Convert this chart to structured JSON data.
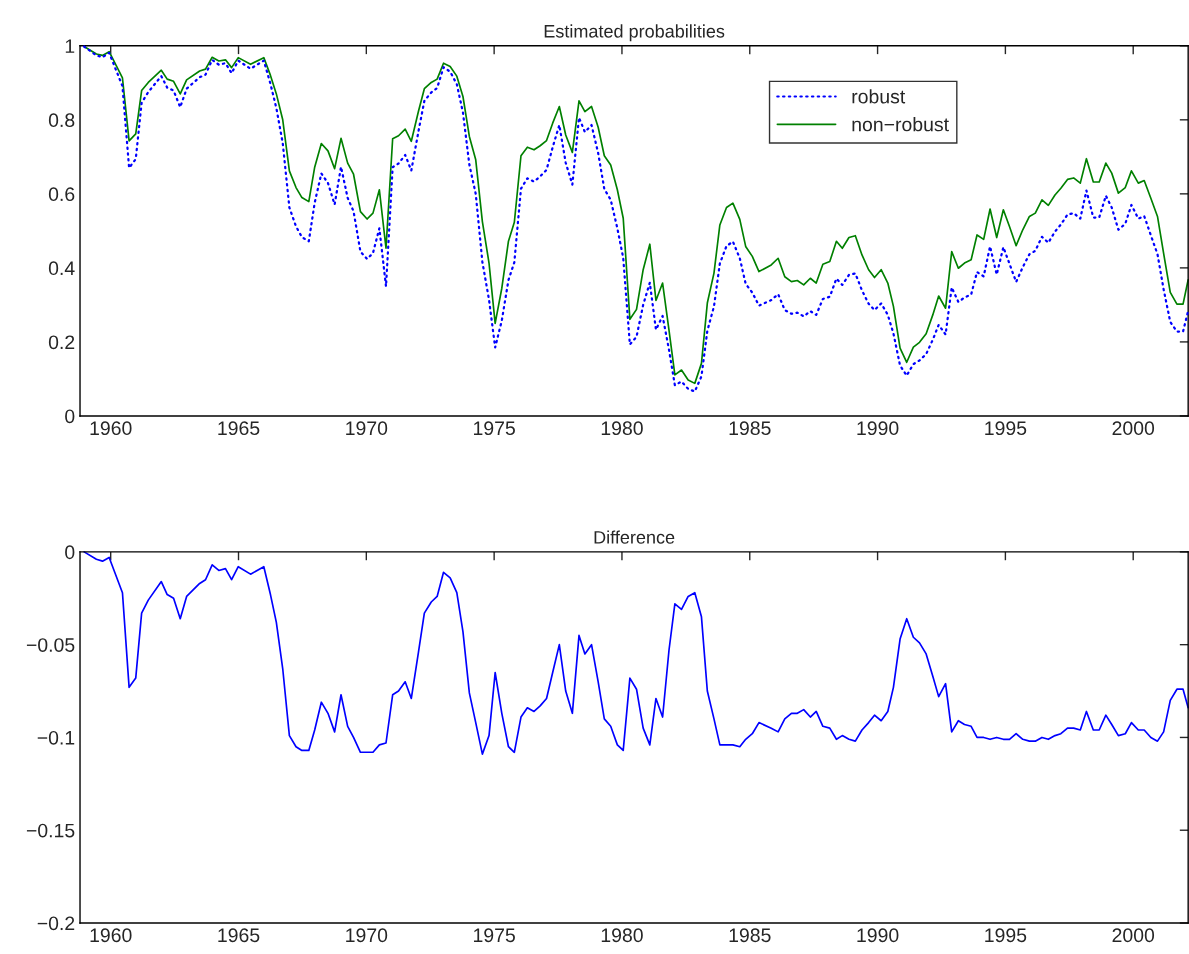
{
  "chart_data": [
    {
      "type": "line",
      "title": "Estimated probabilities",
      "x": [
        1958.96,
        1959.44,
        1959.68,
        1959.94,
        1960.46,
        1960.72,
        1960.98,
        1961.21,
        1961.47,
        1961.98,
        1962.21,
        1962.46,
        1962.72,
        1962.97,
        1963.48,
        1963.71,
        1963.97,
        1964.23,
        1964.49,
        1964.73,
        1964.99,
        1965.47,
        1965.99,
        1966.25,
        1966.48,
        1966.73,
        1966.99,
        1967.25,
        1967.48,
        1967.75,
        1967.98,
        1968.24,
        1968.5,
        1968.76,
        1969.01,
        1969.27,
        1969.5,
        1969.77,
        1970.03,
        1970.26,
        1970.51,
        1970.77,
        1971.03,
        1971.26,
        1971.52,
        1971.76,
        1972.04,
        1972.27,
        1972.54,
        1972.77,
        1973.02,
        1973.28,
        1973.54,
        1973.78,
        1974.03,
        1974.28,
        1974.54,
        1974.8,
        1975.04,
        1975.3,
        1975.56,
        1975.79,
        1976.05,
        1976.3,
        1976.56,
        1976.8,
        1977.05,
        1977.29,
        1977.55,
        1977.8,
        1978.06,
        1978.32,
        1978.55,
        1978.81,
        1979.07,
        1979.31,
        1979.56,
        1979.82,
        1980.05,
        1980.31,
        1980.57,
        1980.83,
        1981.09,
        1981.33,
        1981.59,
        1981.84,
        1982.07,
        1982.33,
        1982.59,
        1982.85,
        1983.11,
        1983.34,
        1983.6,
        1983.83,
        1984.09,
        1984.34,
        1984.61,
        1984.84,
        1985.1,
        1985.36,
        1985.84,
        1986.11,
        1986.37,
        1986.63,
        1986.86,
        1987.11,
        1987.37,
        1987.6,
        1987.86,
        1988.13,
        1988.39,
        1988.62,
        1988.88,
        1989.13,
        1989.39,
        1989.65,
        1989.88,
        1990.14,
        1990.4,
        1990.62,
        1990.88,
        1991.14,
        1991.4,
        1991.64,
        1991.9,
        1992.16,
        1992.39,
        1992.66,
        1992.9,
        1993.16,
        1993.4,
        1993.66,
        1993.89,
        1994.15,
        1994.4,
        1994.66,
        1994.92,
        1995.16,
        1995.42,
        1995.68,
        1995.94,
        1996.17,
        1996.43,
        1996.68,
        1996.94,
        1997.17,
        1997.43,
        1997.67,
        1997.93,
        1998.17,
        1998.44,
        1998.67,
        1998.93,
        1999.16,
        1999.42,
        1999.69,
        1999.93,
        2000.2,
        2000.43,
        2000.69,
        2000.95,
        2001.19,
        2001.45,
        2001.71,
        2001.95,
        2002.15
      ],
      "series": [
        {
          "name": "robust",
          "color": "#0000ff",
          "line_style": "dotted",
          "values": [
            0.998,
            0.974,
            0.969,
            0.981,
            0.891,
            0.67,
            0.694,
            0.846,
            0.875,
            0.918,
            0.887,
            0.879,
            0.834,
            0.884,
            0.915,
            0.922,
            0.962,
            0.949,
            0.953,
            0.926,
            0.96,
            0.938,
            0.96,
            0.897,
            0.832,
            0.737,
            0.563,
            0.512,
            0.483,
            0.472,
            0.576,
            0.655,
            0.629,
            0.571,
            0.673,
            0.589,
            0.553,
            0.444,
            0.424,
            0.44,
            0.507,
            0.35,
            0.672,
            0.682,
            0.705,
            0.663,
            0.769,
            0.851,
            0.874,
            0.886,
            0.942,
            0.93,
            0.896,
            0.82,
            0.679,
            0.6,
            0.416,
            0.314,
            0.185,
            0.258,
            0.367,
            0.415,
            0.614,
            0.642,
            0.633,
            0.647,
            0.665,
            0.726,
            0.786,
            0.684,
            0.625,
            0.806,
            0.767,
            0.786,
            0.71,
            0.613,
            0.584,
            0.507,
            0.427,
            0.193,
            0.214,
            0.3,
            0.36,
            0.233,
            0.27,
            0.179,
            0.083,
            0.093,
            0.073,
            0.066,
            0.107,
            0.23,
            0.296,
            0.412,
            0.459,
            0.471,
            0.426,
            0.357,
            0.333,
            0.298,
            0.313,
            0.329,
            0.286,
            0.276,
            0.279,
            0.269,
            0.283,
            0.273,
            0.316,
            0.322,
            0.371,
            0.354,
            0.381,
            0.385,
            0.339,
            0.303,
            0.286,
            0.304,
            0.273,
            0.223,
            0.136,
            0.109,
            0.14,
            0.15,
            0.167,
            0.206,
            0.246,
            0.22,
            0.347,
            0.308,
            0.32,
            0.328,
            0.389,
            0.377,
            0.458,
            0.382,
            0.456,
            0.411,
            0.362,
            0.402,
            0.437,
            0.446,
            0.484,
            0.468,
            0.498,
            0.517,
            0.544,
            0.548,
            0.533,
            0.609,
            0.536,
            0.536,
            0.595,
            0.563,
            0.503,
            0.519,
            0.57,
            0.533,
            0.54,
            0.488,
            0.437,
            0.342,
            0.254,
            0.228,
            0.228,
            0.284
          ]
        },
        {
          "name": "non−robust",
          "color": "#008000",
          "line_style": "solid",
          "values": [
            0.998,
            0.978,
            0.974,
            0.984,
            0.913,
            0.743,
            0.762,
            0.879,
            0.901,
            0.934,
            0.91,
            0.904,
            0.87,
            0.908,
            0.932,
            0.937,
            0.969,
            0.959,
            0.962,
            0.941,
            0.968,
            0.95,
            0.968,
            0.92,
            0.87,
            0.8,
            0.662,
            0.617,
            0.59,
            0.579,
            0.672,
            0.736,
            0.716,
            0.668,
            0.75,
            0.683,
            0.653,
            0.552,
            0.532,
            0.548,
            0.611,
            0.453,
            0.749,
            0.757,
            0.775,
            0.742,
            0.823,
            0.884,
            0.901,
            0.91,
            0.953,
            0.944,
            0.918,
            0.863,
            0.755,
            0.692,
            0.525,
            0.413,
            0.25,
            0.345,
            0.472,
            0.523,
            0.703,
            0.726,
            0.719,
            0.73,
            0.744,
            0.791,
            0.836,
            0.759,
            0.712,
            0.851,
            0.822,
            0.836,
            0.78,
            0.703,
            0.678,
            0.611,
            0.534,
            0.261,
            0.288,
            0.395,
            0.464,
            0.312,
            0.359,
            0.232,
            0.111,
            0.124,
            0.097,
            0.088,
            0.142,
            0.305,
            0.386,
            0.516,
            0.563,
            0.575,
            0.531,
            0.458,
            0.431,
            0.39,
            0.408,
            0.426,
            0.376,
            0.363,
            0.366,
            0.354,
            0.372,
            0.359,
            0.41,
            0.417,
            0.472,
            0.453,
            0.482,
            0.487,
            0.435,
            0.395,
            0.374,
            0.395,
            0.359,
            0.296,
            0.183,
            0.145,
            0.186,
            0.199,
            0.222,
            0.273,
            0.324,
            0.291,
            0.444,
            0.399,
            0.413,
            0.422,
            0.489,
            0.477,
            0.559,
            0.482,
            0.557,
            0.512,
            0.46,
            0.503,
            0.539,
            0.548,
            0.584,
            0.569,
            0.597,
            0.615,
            0.639,
            0.643,
            0.629,
            0.695,
            0.632,
            0.632,
            0.683,
            0.656,
            0.602,
            0.617,
            0.662,
            0.629,
            0.636,
            0.588,
            0.539,
            0.439,
            0.334,
            0.302,
            0.302,
            0.368
          ]
        }
      ],
      "xlim": [
        1958.8,
        2002.15
      ],
      "xticks": [
        1960,
        1965,
        1970,
        1975,
        1980,
        1985,
        1990,
        1995,
        2000
      ],
      "ylim": [
        0,
        1
      ],
      "yticks": [
        0,
        0.2,
        0.4,
        0.6,
        0.8,
        1
      ],
      "legend": "top right"
    },
    {
      "type": "line",
      "title": "Difference",
      "x": [
        1958.96,
        1959.44,
        1959.68,
        1959.94,
        1960.46,
        1960.72,
        1960.98,
        1961.21,
        1961.47,
        1961.98,
        1962.21,
        1962.46,
        1962.72,
        1962.97,
        1963.48,
        1963.71,
        1963.97,
        1964.23,
        1964.49,
        1964.73,
        1964.99,
        1965.47,
        1965.99,
        1966.25,
        1966.48,
        1966.73,
        1966.99,
        1967.25,
        1967.48,
        1967.75,
        1967.98,
        1968.24,
        1968.5,
        1968.76,
        1969.01,
        1969.27,
        1969.5,
        1969.77,
        1970.03,
        1970.26,
        1970.51,
        1970.77,
        1971.03,
        1971.26,
        1971.52,
        1971.76,
        1972.04,
        1972.27,
        1972.54,
        1972.77,
        1973.02,
        1973.28,
        1973.54,
        1973.78,
        1974.03,
        1974.28,
        1974.54,
        1974.8,
        1975.04,
        1975.3,
        1975.56,
        1975.79,
        1976.05,
        1976.3,
        1976.56,
        1976.8,
        1977.05,
        1977.29,
        1977.55,
        1977.8,
        1978.06,
        1978.32,
        1978.55,
        1978.81,
        1979.07,
        1979.31,
        1979.56,
        1979.82,
        1980.05,
        1980.31,
        1980.57,
        1980.83,
        1981.09,
        1981.33,
        1981.59,
        1981.84,
        1982.07,
        1982.33,
        1982.59,
        1982.85,
        1983.11,
        1983.34,
        1983.6,
        1983.83,
        1984.09,
        1984.34,
        1984.61,
        1984.84,
        1985.1,
        1985.36,
        1985.84,
        1986.11,
        1986.37,
        1986.63,
        1986.86,
        1987.11,
        1987.37,
        1987.6,
        1987.86,
        1988.13,
        1988.39,
        1988.62,
        1988.88,
        1989.13,
        1989.39,
        1989.65,
        1989.88,
        1990.14,
        1990.4,
        1990.62,
        1990.88,
        1991.14,
        1991.4,
        1991.64,
        1991.9,
        1992.16,
        1992.39,
        1992.66,
        1992.9,
        1993.16,
        1993.4,
        1993.66,
        1993.89,
        1994.15,
        1994.4,
        1994.66,
        1994.92,
        1995.16,
        1995.42,
        1995.68,
        1995.94,
        1996.17,
        1996.43,
        1996.68,
        1996.94,
        1997.17,
        1997.43,
        1997.67,
        1997.93,
        1998.17,
        1998.44,
        1998.67,
        1998.93,
        1999.16,
        1999.42,
        1999.69,
        1999.93,
        2000.2,
        2000.43,
        2000.69,
        2000.95,
        2001.19,
        2001.45,
        2001.71,
        2001.95,
        2002.15
      ],
      "series": [
        {
          "color": "#0000ff",
          "line_style": "solid",
          "values": [
            0.0,
            -0.004,
            -0.005,
            -0.003,
            -0.022,
            -0.073,
            -0.068,
            -0.033,
            -0.026,
            -0.016,
            -0.023,
            -0.025,
            -0.036,
            -0.024,
            -0.017,
            -0.015,
            -0.007,
            -0.01,
            -0.009,
            -0.015,
            -0.008,
            -0.012,
            -0.008,
            -0.023,
            -0.038,
            -0.063,
            -0.099,
            -0.105,
            -0.107,
            -0.107,
            -0.096,
            -0.081,
            -0.087,
            -0.097,
            -0.077,
            -0.094,
            -0.1,
            -0.108,
            -0.108,
            -0.108,
            -0.104,
            -0.103,
            -0.077,
            -0.075,
            -0.07,
            -0.079,
            -0.054,
            -0.033,
            -0.027,
            -0.024,
            -0.011,
            -0.014,
            -0.022,
            -0.043,
            -0.076,
            -0.092,
            -0.109,
            -0.099,
            -0.065,
            -0.087,
            -0.105,
            -0.108,
            -0.089,
            -0.084,
            -0.086,
            -0.083,
            -0.079,
            -0.065,
            -0.05,
            -0.075,
            -0.087,
            -0.045,
            -0.055,
            -0.05,
            -0.07,
            -0.09,
            -0.094,
            -0.104,
            -0.107,
            -0.068,
            -0.074,
            -0.095,
            -0.104,
            -0.079,
            -0.089,
            -0.053,
            -0.028,
            -0.031,
            -0.024,
            -0.022,
            -0.035,
            -0.075,
            -0.09,
            -0.104,
            -0.104,
            -0.104,
            -0.105,
            -0.101,
            -0.098,
            -0.092,
            -0.095,
            -0.097,
            -0.09,
            -0.087,
            -0.087,
            -0.085,
            -0.089,
            -0.086,
            -0.094,
            -0.095,
            -0.101,
            -0.099,
            -0.101,
            -0.102,
            -0.096,
            -0.092,
            -0.088,
            -0.091,
            -0.086,
            -0.073,
            -0.047,
            -0.036,
            -0.046,
            -0.049,
            -0.055,
            -0.067,
            -0.078,
            -0.071,
            -0.097,
            -0.091,
            -0.093,
            -0.094,
            -0.1,
            -0.1,
            -0.101,
            -0.1,
            -0.101,
            -0.101,
            -0.098,
            -0.101,
            -0.102,
            -0.102,
            -0.1,
            -0.101,
            -0.099,
            -0.098,
            -0.095,
            -0.095,
            -0.096,
            -0.086,
            -0.096,
            -0.096,
            -0.088,
            -0.093,
            -0.099,
            -0.098,
            -0.092,
            -0.096,
            -0.096,
            -0.1,
            -0.102,
            -0.097,
            -0.08,
            -0.074,
            -0.074,
            -0.084
          ]
        }
      ],
      "xlim": [
        1958.8,
        2002.15
      ],
      "xticks": [
        1960,
        1965,
        1970,
        1975,
        1980,
        1985,
        1990,
        1995,
        2000
      ],
      "ylim": [
        -0.2,
        0
      ],
      "yticks": [
        {
          "value": -0.2,
          "label": "−0.2"
        },
        {
          "value": -0.15,
          "label": "−0.15"
        },
        {
          "value": -0.1,
          "label": "−0.1"
        },
        {
          "value": -0.05,
          "label": "−0.05"
        },
        0
      ]
    }
  ]
}
